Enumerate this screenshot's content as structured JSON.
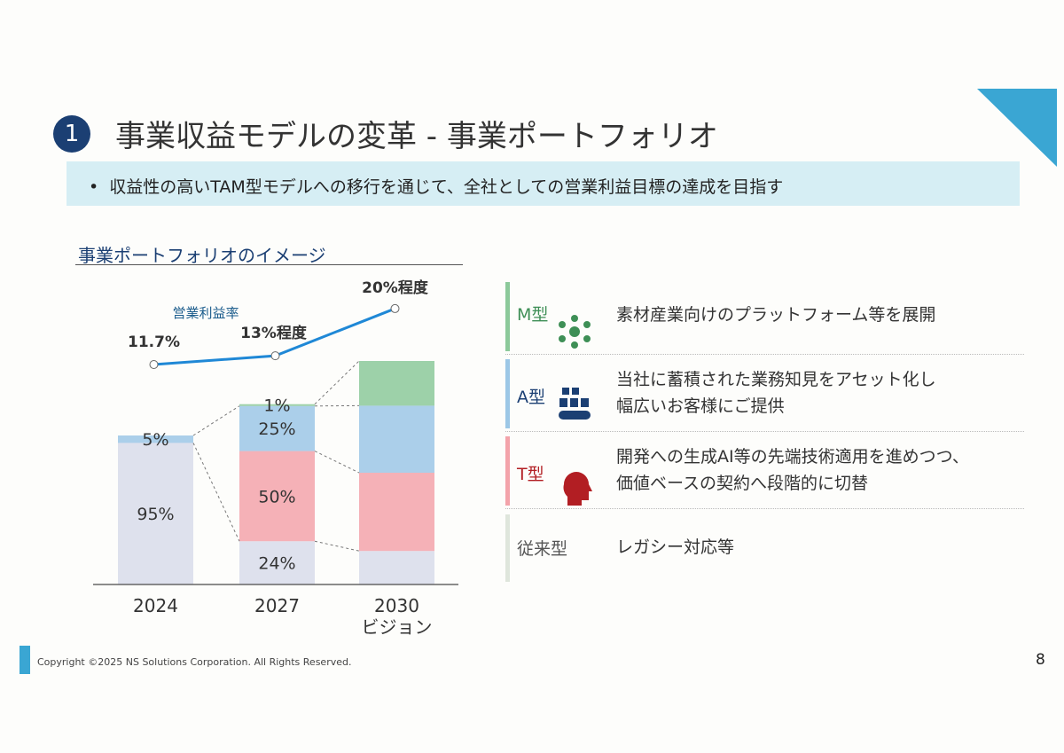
{
  "header": {
    "number": "1",
    "title": "事業収益モデルの変革 - 事業ポートフォリオ"
  },
  "bullet": "収益性の高いTAM型モデルへの移行を通じて、全社としての営業利益目標の達成を目指す",
  "section_title": "事業ポートフォリオのイメージ",
  "colors": {
    "accent": "#3aa6d3",
    "navy": "#1b3f73",
    "M": "#8cc99a",
    "A": "#9cc7e6",
    "T": "#f3a3aa",
    "legacy": "#d8dcea",
    "line": "#1f88d6"
  },
  "chart_data": {
    "type": "bar",
    "stacked": true,
    "categories": [
      "2024",
      "2027",
      "2030\nビジョン"
    ],
    "category_labels": [
      [
        "2024"
      ],
      [
        "2027"
      ],
      [
        "2030",
        "ビジョン"
      ]
    ],
    "bar_total_index": [
      100,
      121,
      150
    ],
    "series": [
      {
        "key": "legacy",
        "values": [
          95,
          24,
          15
        ],
        "labels": [
          "95%",
          "24%",
          ""
        ]
      },
      {
        "key": "T",
        "values": [
          0,
          50,
          35
        ],
        "labels": [
          "",
          "50%",
          ""
        ]
      },
      {
        "key": "A",
        "values": [
          5,
          25,
          30
        ],
        "labels": [
          "5%",
          "25%",
          ""
        ]
      },
      {
        "key": "M",
        "values": [
          0,
          1,
          20
        ],
        "labels": [
          "",
          "1%",
          ""
        ]
      }
    ],
    "line": {
      "name": "営業利益率",
      "values": [
        11.7,
        13,
        20
      ],
      "labels": [
        "11.7%",
        "13%程度",
        "20%程度"
      ]
    }
  },
  "legend": [
    {
      "type": "M型",
      "desc": [
        "素材産業向けのプラットフォーム等を展開"
      ],
      "icon": "network-people-icon",
      "color": "#3e8f56"
    },
    {
      "type": "A型",
      "desc": [
        "当社に蓄積された業務知見をアセット化し",
        "幅広いお客様にご提供"
      ],
      "icon": "conveyor-boxes-icon",
      "color": "#1b3f73"
    },
    {
      "type": "T型",
      "desc": [
        "開発への生成AI等の先端技術適用を進めつつ、",
        "価値ベースの契約へ段階的に切替"
      ],
      "icon": "ai-head-icon",
      "color": "#b21e23"
    },
    {
      "type": "従来型",
      "desc": [
        "レガシー対応等"
      ],
      "icon": "",
      "color": "#555"
    }
  ],
  "footer": {
    "copyright": "Copyright ©2025  NS Solutions Corporation. All Rights Reserved.",
    "page": "8"
  }
}
